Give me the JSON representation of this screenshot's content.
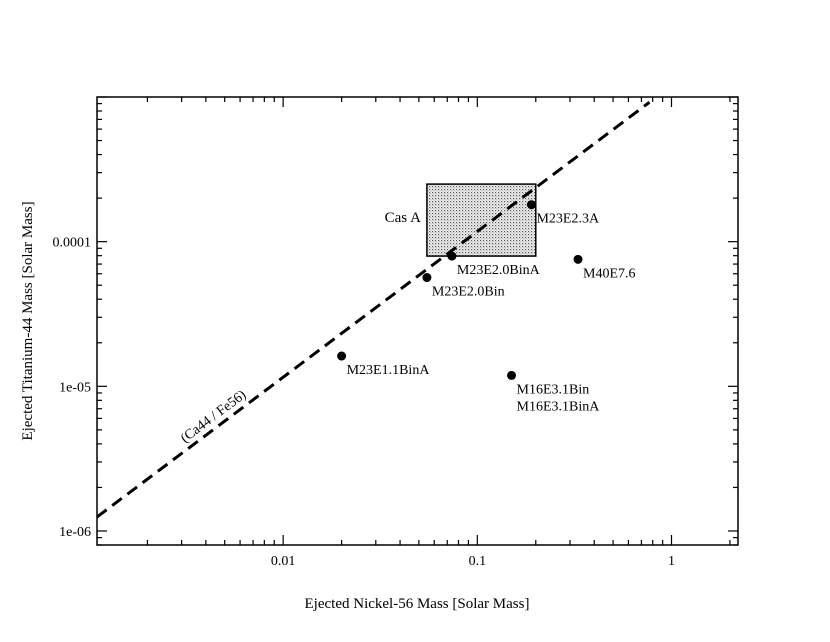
{
  "chart_data": {
    "type": "scatter",
    "title": "",
    "xlabel": "Ejected Nickel-56 Mass [Solar Mass]",
    "ylabel": "Ejected Titanium-44 Mass [Solar Mass]",
    "xscale": "log",
    "yscale": "log",
    "xlim": [
      0.0011,
      2.2
    ],
    "ylim": [
      8e-07,
      0.001
    ],
    "xticks": [
      {
        "value": 0.01,
        "label": "0.01"
      },
      {
        "value": 0.1,
        "label": "0.1"
      },
      {
        "value": 1,
        "label": "1"
      }
    ],
    "yticks": [
      {
        "value": 1e-06,
        "label": "1e-06"
      },
      {
        "value": 1e-05,
        "label": "1e-05"
      },
      {
        "value": 0.0001,
        "label": "0.0001"
      }
    ],
    "grid": false,
    "points": [
      {
        "name": "M23E2.3A",
        "x": 0.19,
        "y": 0.00018
      },
      {
        "name": "M23E2.0BinA",
        "x": 0.074,
        "y": 7.95e-05
      },
      {
        "name": "M40E7.6",
        "x": 0.33,
        "y": 7.55e-05
      },
      {
        "name": "M23E2.0Bin",
        "x": 0.055,
        "y": 5.65e-05
      },
      {
        "name": "M23E1.1BinA",
        "x": 0.02,
        "y": 1.62e-05
      },
      {
        "name": "M16E3.1Bin\nM16E3.1BinA",
        "labels": [
          "M16E3.1Bin",
          "M16E3.1BinA"
        ],
        "x": 0.15,
        "y": 1.19e-05
      }
    ],
    "region": {
      "label": "Cas A",
      "x_range": [
        0.055,
        0.2
      ],
      "y_range": [
        7.95e-05,
        0.00025
      ]
    },
    "reference_line": {
      "label": "(Ca44 / Fe56)",
      "style": "dashed",
      "x": [
        0.0011,
        0.77
      ],
      "y": [
        1.25e-06,
        0.00092
      ]
    }
  }
}
